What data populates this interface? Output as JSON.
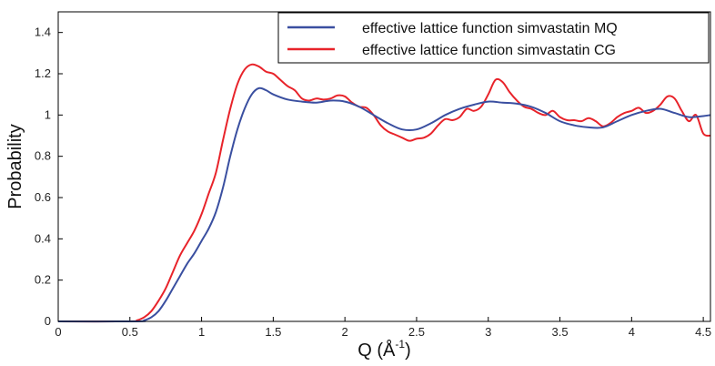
{
  "chart_data": {
    "type": "line",
    "xlabel": "Q (Å",
    "xlabel_sup": "-1",
    "xlabel_close": ")",
    "ylabel": "Probability",
    "xlim": [
      0,
      4.55
    ],
    "ylim": [
      0,
      1.5
    ],
    "xticks": [
      "0",
      "0.5",
      "1",
      "1.5",
      "2",
      "2.5",
      "3",
      "3.5",
      "4",
      "4.5"
    ],
    "xtick_values": [
      0,
      0.5,
      1,
      1.5,
      2,
      2.5,
      3,
      3.5,
      4,
      4.5
    ],
    "yticks": [
      "0",
      "0.2",
      "0.4",
      "0.6",
      "0.8",
      "1",
      "1.2",
      "1.4"
    ],
    "ytick_values": [
      0,
      0.2,
      0.4,
      0.6,
      0.8,
      1.0,
      1.2,
      1.4
    ],
    "grid": false,
    "legend_position": "top-right",
    "series": [
      {
        "name": "effective lattice function simvastatin MQ",
        "color": "#3a4fa0",
        "points": [
          [
            0,
            0
          ],
          [
            0.55,
            0
          ],
          [
            0.6,
            0.005
          ],
          [
            0.65,
            0.02
          ],
          [
            0.7,
            0.05
          ],
          [
            0.75,
            0.1
          ],
          [
            0.8,
            0.16
          ],
          [
            0.85,
            0.22
          ],
          [
            0.9,
            0.28
          ],
          [
            0.95,
            0.33
          ],
          [
            1.0,
            0.39
          ],
          [
            1.05,
            0.45
          ],
          [
            1.1,
            0.53
          ],
          [
            1.15,
            0.65
          ],
          [
            1.2,
            0.8
          ],
          [
            1.25,
            0.93
          ],
          [
            1.3,
            1.03
          ],
          [
            1.35,
            1.1
          ],
          [
            1.4,
            1.13
          ],
          [
            1.45,
            1.12
          ],
          [
            1.5,
            1.1
          ],
          [
            1.6,
            1.075
          ],
          [
            1.7,
            1.065
          ],
          [
            1.8,
            1.06
          ],
          [
            1.9,
            1.07
          ],
          [
            2.0,
            1.065
          ],
          [
            2.1,
            1.04
          ],
          [
            2.2,
            1.0
          ],
          [
            2.3,
            0.96
          ],
          [
            2.4,
            0.93
          ],
          [
            2.5,
            0.93
          ],
          [
            2.6,
            0.96
          ],
          [
            2.7,
            1.0
          ],
          [
            2.8,
            1.03
          ],
          [
            2.9,
            1.05
          ],
          [
            3.0,
            1.065
          ],
          [
            3.1,
            1.06
          ],
          [
            3.2,
            1.055
          ],
          [
            3.3,
            1.04
          ],
          [
            3.4,
            1.01
          ],
          [
            3.5,
            0.97
          ],
          [
            3.6,
            0.95
          ],
          [
            3.7,
            0.94
          ],
          [
            3.8,
            0.94
          ],
          [
            3.9,
            0.97
          ],
          [
            4.0,
            1.0
          ],
          [
            4.1,
            1.02
          ],
          [
            4.2,
            1.03
          ],
          [
            4.3,
            1.01
          ],
          [
            4.4,
            0.99
          ],
          [
            4.5,
            0.995
          ],
          [
            4.55,
            1.0
          ]
        ]
      },
      {
        "name": "effective lattice function simvastatin CG",
        "color": "#e8232a",
        "points": [
          [
            0,
            0
          ],
          [
            0.5,
            0
          ],
          [
            0.55,
            0.005
          ],
          [
            0.6,
            0.02
          ],
          [
            0.65,
            0.05
          ],
          [
            0.7,
            0.1
          ],
          [
            0.75,
            0.16
          ],
          [
            0.8,
            0.24
          ],
          [
            0.85,
            0.32
          ],
          [
            0.9,
            0.38
          ],
          [
            0.95,
            0.44
          ],
          [
            1.0,
            0.52
          ],
          [
            1.05,
            0.62
          ],
          [
            1.1,
            0.72
          ],
          [
            1.15,
            0.88
          ],
          [
            1.2,
            1.03
          ],
          [
            1.25,
            1.15
          ],
          [
            1.3,
            1.22
          ],
          [
            1.35,
            1.245
          ],
          [
            1.4,
            1.235
          ],
          [
            1.45,
            1.21
          ],
          [
            1.5,
            1.2
          ],
          [
            1.55,
            1.17
          ],
          [
            1.6,
            1.14
          ],
          [
            1.65,
            1.12
          ],
          [
            1.7,
            1.08
          ],
          [
            1.75,
            1.07
          ],
          [
            1.8,
            1.08
          ],
          [
            1.85,
            1.075
          ],
          [
            1.9,
            1.08
          ],
          [
            1.95,
            1.095
          ],
          [
            2.0,
            1.09
          ],
          [
            2.05,
            1.06
          ],
          [
            2.1,
            1.04
          ],
          [
            2.15,
            1.035
          ],
          [
            2.2,
            1.0
          ],
          [
            2.25,
            0.95
          ],
          [
            2.3,
            0.92
          ],
          [
            2.35,
            0.905
          ],
          [
            2.4,
            0.89
          ],
          [
            2.45,
            0.875
          ],
          [
            2.5,
            0.885
          ],
          [
            2.55,
            0.89
          ],
          [
            2.6,
            0.91
          ],
          [
            2.65,
            0.95
          ],
          [
            2.7,
            0.98
          ],
          [
            2.75,
            0.975
          ],
          [
            2.8,
            0.99
          ],
          [
            2.85,
            1.03
          ],
          [
            2.9,
            1.02
          ],
          [
            2.95,
            1.04
          ],
          [
            3.0,
            1.1
          ],
          [
            3.05,
            1.17
          ],
          [
            3.1,
            1.16
          ],
          [
            3.15,
            1.11
          ],
          [
            3.2,
            1.07
          ],
          [
            3.25,
            1.04
          ],
          [
            3.3,
            1.03
          ],
          [
            3.35,
            1.01
          ],
          [
            3.4,
            1.0
          ],
          [
            3.45,
            1.02
          ],
          [
            3.5,
            0.99
          ],
          [
            3.55,
            0.975
          ],
          [
            3.6,
            0.975
          ],
          [
            3.65,
            0.97
          ],
          [
            3.7,
            0.985
          ],
          [
            3.75,
            0.97
          ],
          [
            3.8,
            0.945
          ],
          [
            3.85,
            0.96
          ],
          [
            3.9,
            0.99
          ],
          [
            3.95,
            1.01
          ],
          [
            4.0,
            1.02
          ],
          [
            4.05,
            1.035
          ],
          [
            4.1,
            1.01
          ],
          [
            4.15,
            1.02
          ],
          [
            4.2,
            1.05
          ],
          [
            4.25,
            1.09
          ],
          [
            4.3,
            1.08
          ],
          [
            4.35,
            1.02
          ],
          [
            4.4,
            0.97
          ],
          [
            4.45,
            1.0
          ],
          [
            4.5,
            0.91
          ],
          [
            4.55,
            0.9
          ]
        ]
      }
    ]
  }
}
